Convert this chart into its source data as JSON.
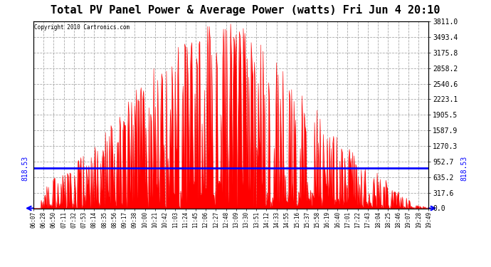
{
  "title": "Total PV Panel Power & Average Power (watts) Fri Jun 4 20:10",
  "copyright": "Copyright 2010 Cartronics.com",
  "avg_power": 818.53,
  "y_max": 3811.0,
  "y_min": 0.0,
  "y_ticks": [
    0.0,
    317.6,
    635.2,
    952.7,
    1270.3,
    1587.9,
    1905.5,
    2223.1,
    2540.6,
    2858.2,
    3175.8,
    3493.4,
    3811.0
  ],
  "x_labels": [
    "06:07",
    "06:28",
    "06:50",
    "07:11",
    "07:32",
    "07:53",
    "08:14",
    "08:35",
    "08:56",
    "09:17",
    "09:38",
    "10:00",
    "10:21",
    "10:42",
    "11:03",
    "11:24",
    "11:45",
    "12:06",
    "12:27",
    "12:48",
    "13:09",
    "13:30",
    "13:51",
    "14:12",
    "14:33",
    "14:55",
    "15:16",
    "15:37",
    "15:58",
    "16:19",
    "16:40",
    "17:01",
    "17:22",
    "17:43",
    "18:04",
    "18:25",
    "18:46",
    "19:07",
    "19:28",
    "19:49"
  ],
  "bg_color": "#ffffff",
  "plot_bg_color": "#ffffff",
  "red_color": "#ff0000",
  "blue_color": "#0000ff",
  "grid_color": "#aaaaaa",
  "title_font_size": 11,
  "avg_label_fontsize": 7
}
